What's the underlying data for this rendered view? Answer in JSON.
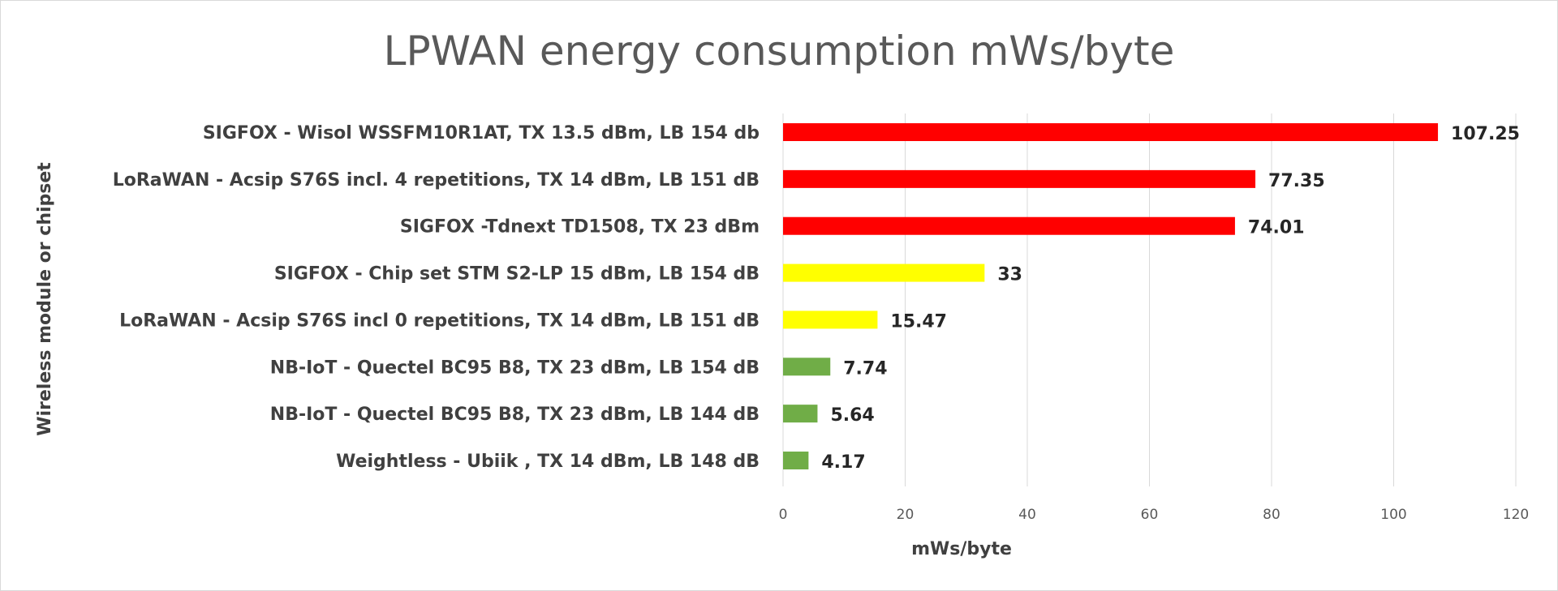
{
  "chart_data": {
    "type": "bar",
    "orientation": "horizontal",
    "title": "LPWAN energy consumption mWs/byte",
    "xlabel": "mWs/byte",
    "ylabel": "Wireless module or chipset",
    "xlim": [
      0,
      120
    ],
    "xticks": [
      "0",
      "20",
      "40",
      "60",
      "80",
      "100",
      "120"
    ],
    "grid": "vertical",
    "legend": "none",
    "categories": [
      "SIGFOX - Wisol WSSFM10R1AT, TX 13.5 dBm, LB 154 db",
      "LoRaWAN - Acsip S76S incl. 4 repetitions, TX 14 dBm, LB 151 dB",
      "SIGFOX -Tdnext TD1508, TX 23 dBm",
      "SIGFOX - Chip set STM S2-LP 15 dBm, LB 154 dB",
      "LoRaWAN - Acsip S76S incl 0 repetitions, TX 14 dBm, LB 151 dB",
      "NB-IoT - Quectel BC95 B8, TX 23 dBm, LB 154 dB",
      "NB-IoT - Quectel BC95 B8, TX 23 dBm, LB 144 dB",
      "Weightless - Ubiik , TX 14 dBm, LB 148 dB"
    ],
    "values": [
      107.25,
      77.35,
      74.01,
      33,
      15.47,
      7.74,
      5.64,
      4.17
    ],
    "value_labels": [
      "107.25",
      "77.35",
      "74.01",
      "33",
      "15.47",
      "7.74",
      "5.64",
      "4.17"
    ],
    "bar_colors": [
      "#ff0000",
      "#ff0000",
      "#ff0000",
      "#ffff00",
      "#ffff00",
      "#70ad47",
      "#70ad47",
      "#70ad47"
    ]
  }
}
